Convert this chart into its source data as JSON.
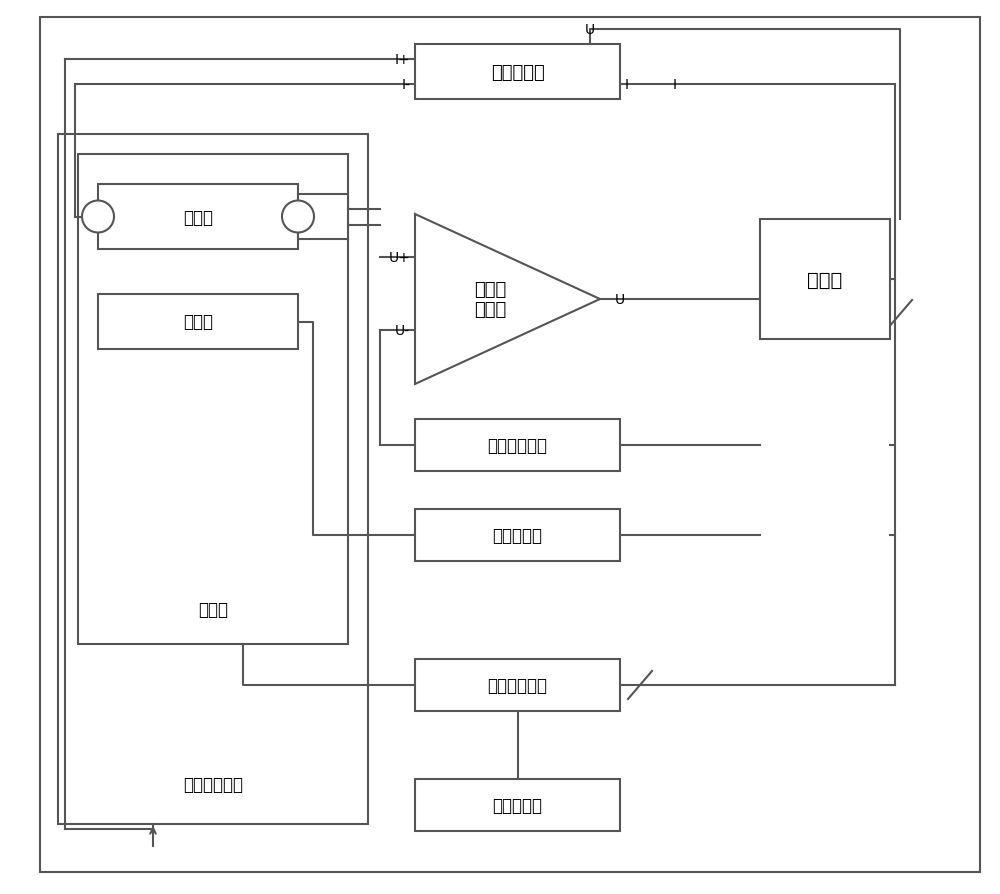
{
  "bg_color": "#ffffff",
  "lc": "#555555",
  "lw": 1.5,
  "figsize": [
    10.0,
    8.95
  ],
  "dpi": 100,
  "font": "SimHei",
  "font_size_sm": 11,
  "font_size_md": 13,
  "font_size_lg": 14,
  "labels": {
    "vccs": "压控电流源",
    "lna": "低噪声\n放大器",
    "dc_bias": "直流偏振模块",
    "temp_ctrl": "温度控制器",
    "lnflow": "液氮流量开关",
    "ln_tank": "液氮冷却罐",
    "computer": "计算机",
    "stirling": "斯特林制冷机",
    "cooling": "冷却腔",
    "rad_src": "辐射源",
    "therm": "温度计"
  }
}
